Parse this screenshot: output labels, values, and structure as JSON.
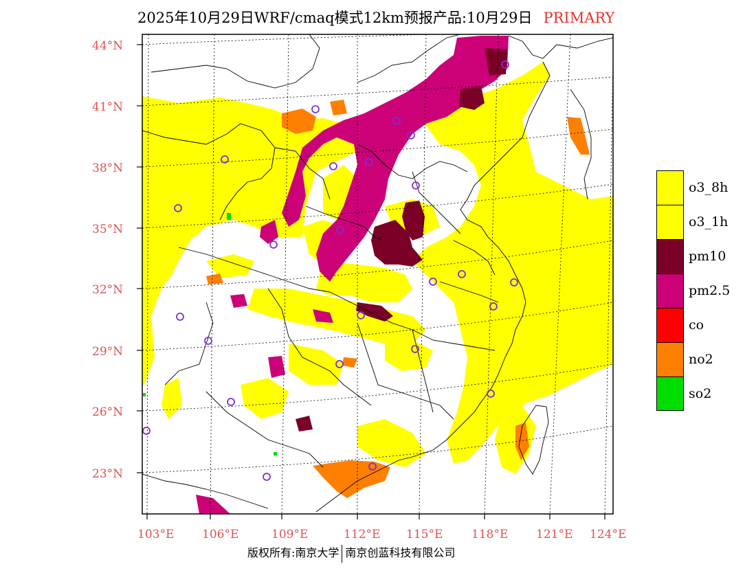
{
  "title": {
    "main": "2025年10月29日WRF/cmaq模式12km预报产品:10月29日",
    "tag": "PRIMARY"
  },
  "axes": {
    "lat_labels": [
      "44°N",
      "41°N",
      "38°N",
      "35°N",
      "32°N",
      "29°N",
      "26°N",
      "23°N"
    ],
    "lon_labels": [
      "103°E",
      "106°E",
      "109°E",
      "112°E",
      "115°E",
      "118°E",
      "121°E",
      "124°E"
    ]
  },
  "legend": [
    {
      "label": "o3_8h",
      "color": "#ffff00"
    },
    {
      "label": "o3_1h",
      "color": "#ffff00"
    },
    {
      "label": "pm10",
      "color": "#7a0028"
    },
    {
      "label": "pm2.5",
      "color": "#cc0077"
    },
    {
      "label": "co",
      "color": "#ff0000"
    },
    {
      "label": "no2",
      "color": "#ff7f00"
    },
    {
      "label": "so2",
      "color": "#00dd00"
    }
  ],
  "colors": {
    "o3": "#ffff00",
    "pm10": "#7a0028",
    "pm25": "#cc0077",
    "no2": "#ff7f00",
    "so2": "#00dd00",
    "axis_label": "#e05050",
    "city_marker": "#7b2fd9"
  },
  "footer": {
    "left": "版权所有:南京大学",
    "right": "南京创蓝科技有限公司"
  }
}
